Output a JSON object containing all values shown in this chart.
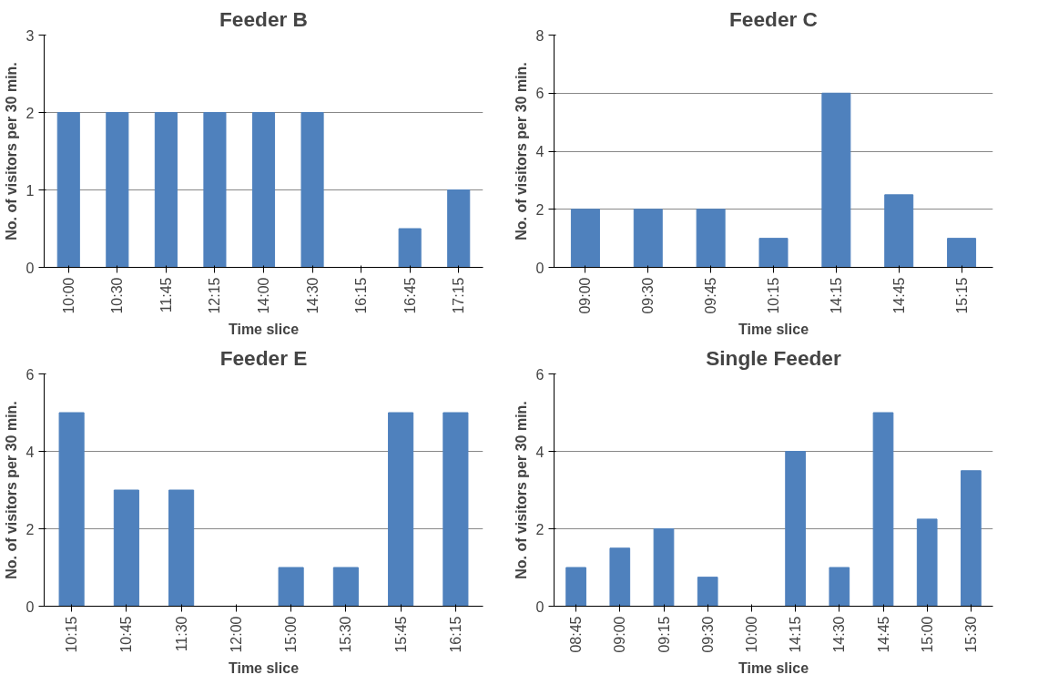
{
  "chart_data": [
    {
      "type": "bar",
      "title": "Feeder B",
      "xlabel": "Time slice",
      "ylabel": "No. of visitors per 30 min.",
      "categories": [
        "10:00",
        "10:30",
        "11:45",
        "12:15",
        "14:00",
        "14:30",
        "16:15",
        "16:45",
        "17:15"
      ],
      "values": [
        2,
        2,
        2,
        2,
        2,
        2,
        0,
        0.5,
        1
      ],
      "color": "#4f81bd",
      "ylim": [
        0,
        3
      ],
      "yticks": [
        0,
        1,
        2,
        3
      ],
      "grid": "y"
    },
    {
      "type": "bar",
      "title": "Feeder C",
      "xlabel": "Time slice",
      "ylabel": "No. of visitors per 30 min.",
      "categories": [
        "09:00",
        "09:30",
        "09:45",
        "10:15",
        "14:15",
        "14:45",
        "15:15"
      ],
      "values": [
        2,
        2,
        2,
        1,
        6,
        2.5,
        1
      ],
      "color": "#4f81bd",
      "ylim": [
        0,
        8
      ],
      "yticks": [
        0,
        2,
        4,
        6,
        8
      ],
      "grid": "y"
    },
    {
      "type": "bar",
      "title": "Feeder E",
      "xlabel": "Time slice",
      "ylabel": "No. of visitors per 30 min.",
      "categories": [
        "10:15",
        "10:45",
        "11:30",
        "12:00",
        "15:00",
        "15:30",
        "15:45",
        "16:15"
      ],
      "values": [
        5,
        3,
        3,
        0,
        1,
        1,
        5,
        5
      ],
      "color": "#4f81bd",
      "ylim": [
        0,
        6
      ],
      "yticks": [
        0,
        2,
        4,
        6
      ],
      "grid": "y"
    },
    {
      "type": "bar",
      "title": "Single Feeder",
      "xlabel": "Time slice",
      "ylabel": "No. of visitors per 30 min.",
      "categories": [
        "08:45",
        "09:00",
        "09:15",
        "09:30",
        "10:00",
        "14:15",
        "14:30",
        "14:45",
        "15:00",
        "15:30"
      ],
      "values": [
        1,
        1.5,
        2,
        0.75,
        0,
        4,
        1,
        5,
        2.25,
        3.5
      ],
      "color": "#4f81bd",
      "ylim": [
        0,
        6
      ],
      "yticks": [
        0,
        2,
        4,
        6
      ],
      "grid": "y"
    }
  ]
}
